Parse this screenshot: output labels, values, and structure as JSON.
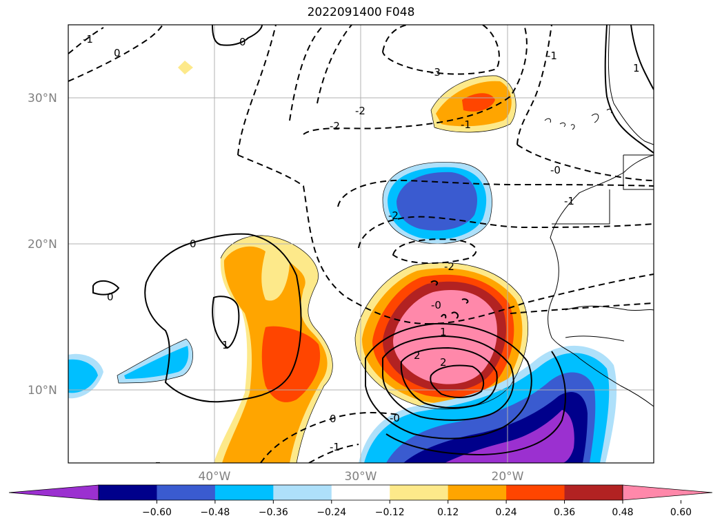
{
  "title": "2022091400 F048",
  "map": {
    "lat_labels": [
      "30°N",
      "20°N",
      "10°N"
    ],
    "lon_labels": [
      "40°W",
      "30°W",
      "20°W"
    ],
    "grid": true
  },
  "colorbar": {
    "ticks": [
      "−0.60",
      "−0.48",
      "−0.36",
      "−0.24",
      "−0.12",
      "0.12",
      "0.24",
      "0.36",
      "0.48",
      "0.60"
    ],
    "colors": [
      "#9b30d0",
      "#00008b",
      "#3a5bd0",
      "#00bfff",
      "#aee0fa",
      "#ffffff",
      "#fde98a",
      "#ffa500",
      "#ff4500",
      "#b22222",
      "#ff88aa"
    ],
    "extend": "both"
  },
  "contour_labels": {
    "c1": "-1",
    "c2": "0",
    "c3": "0",
    "c4": "-3",
    "c5": "-2",
    "c6": "-2",
    "c7": "-1",
    "c8": "-1",
    "c9": "-0",
    "c10": "-1",
    "c11": "-2",
    "c12": "-2",
    "c13": "0",
    "c14": "0",
    "c15": "1",
    "c16": "-0",
    "c17": "1",
    "c18": "2",
    "c19": "2",
    "c20": "0",
    "c21": "-1",
    "c22": "-0",
    "c23": "1"
  }
}
